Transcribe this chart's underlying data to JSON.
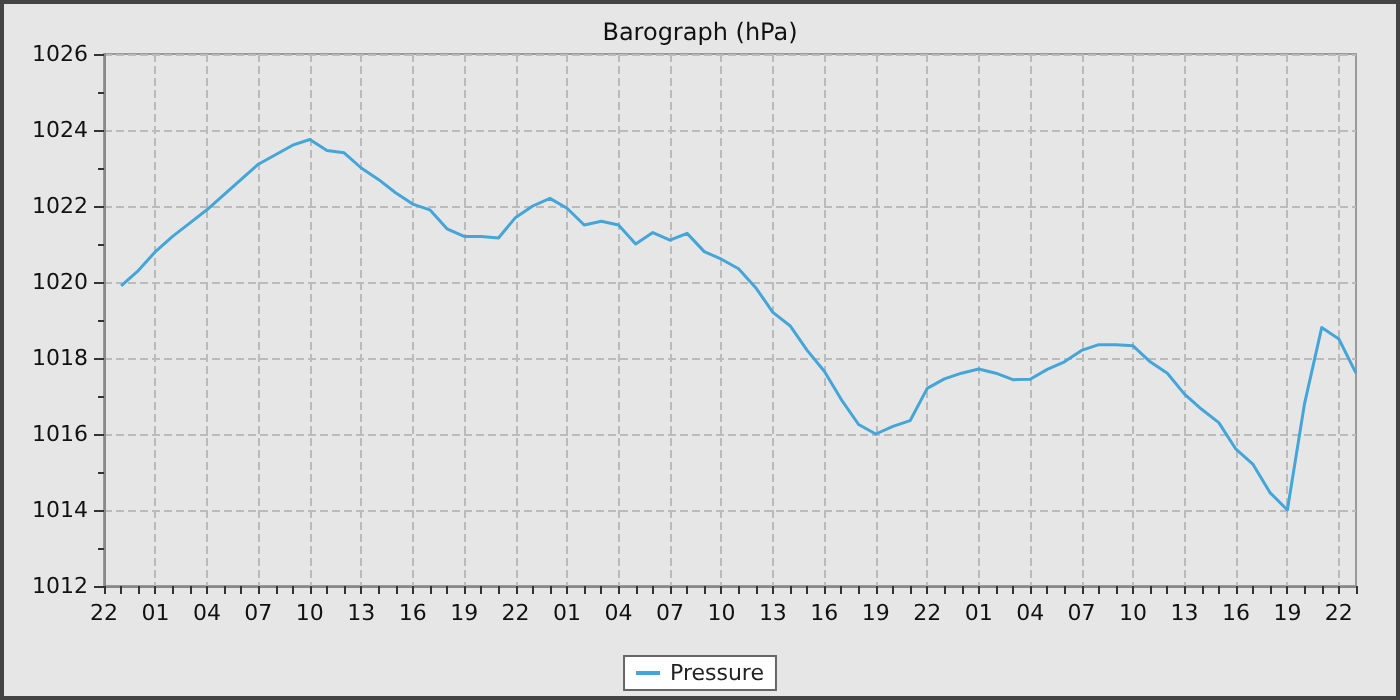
{
  "chart_data": {
    "type": "line",
    "title": "Barograph (hPa)",
    "categories": [
      "22",
      null,
      null,
      "01",
      null,
      null,
      "04",
      null,
      null,
      "07",
      null,
      null,
      "10",
      null,
      null,
      "13",
      null,
      null,
      "16",
      null,
      null,
      "19",
      null,
      null,
      "22",
      null,
      null,
      "01",
      null,
      null,
      "04",
      null,
      null,
      "07",
      null,
      null,
      "10",
      null,
      null,
      "13",
      null,
      null,
      "16",
      null,
      null,
      "19",
      null,
      null,
      "22",
      null,
      null,
      "01",
      null,
      null,
      "04",
      null,
      null,
      "07",
      null,
      null,
      "10",
      null,
      null,
      "13",
      null,
      null,
      "16",
      null,
      null,
      "19",
      null,
      null,
      "22",
      null
    ],
    "ylim": [
      1012,
      1026
    ],
    "yticks": [
      1012,
      {
        "value": 1013,
        "label": null
      },
      1014,
      {
        "value": 1015,
        "label": null
      },
      1016,
      {
        "value": 1017,
        "label": null
      },
      1018,
      {
        "value": 1019,
        "label": null
      },
      1020,
      {
        "value": 1021,
        "label": null
      },
      1022,
      {
        "value": 1023,
        "label": null
      },
      1024,
      {
        "value": 1025,
        "label": null
      },
      1026
    ],
    "grid": true,
    "legend": "bottom",
    "marker": "none",
    "series": [
      {
        "name": "Pressure",
        "color": "#44a6d8",
        "values": [
          null,
          1019.9,
          1020.3,
          1020.8,
          1021.2,
          1021.55,
          1021.9,
          1022.3,
          1022.7,
          1023.1,
          1023.35,
          1023.6,
          1023.75,
          1023.46,
          1023.4,
          1023.0,
          1022.7,
          1022.35,
          1022.05,
          1021.9,
          1021.4,
          1021.2,
          1021.2,
          1021.16,
          1021.7,
          1022.0,
          1022.2,
          1021.94,
          1021.5,
          1021.6,
          1021.5,
          1021.0,
          1021.3,
          1021.1,
          1021.28,
          1020.8,
          1020.6,
          1020.35,
          1019.85,
          1019.2,
          1018.85,
          1018.2,
          1017.65,
          1016.9,
          1016.25,
          1016.0,
          1016.2,
          1016.35,
          1017.2,
          1017.45,
          1017.6,
          1017.71,
          1017.6,
          1017.43,
          1017.44,
          1017.7,
          1017.9,
          1018.2,
          1018.35,
          1018.35,
          1018.32,
          1017.9,
          1017.6,
          1017.05,
          1016.65,
          1016.3,
          1015.6,
          1015.2,
          1014.45,
          1014.0,
          1016.8,
          1018.8,
          1018.5,
          1017.6
        ]
      }
    ]
  }
}
